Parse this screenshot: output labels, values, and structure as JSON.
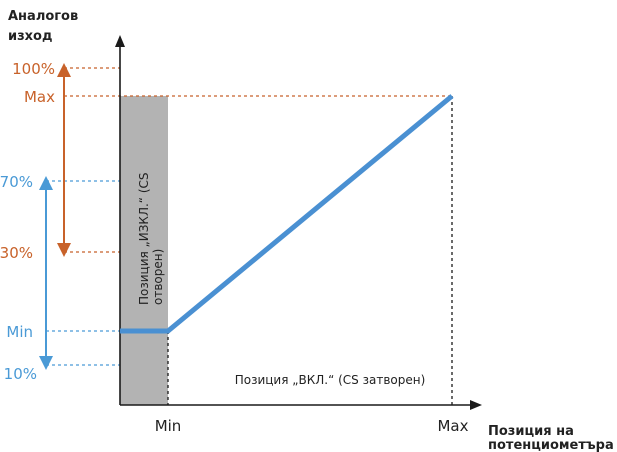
{
  "y_axis_title": [
    "Аналогов",
    "изход"
  ],
  "x_axis_title": [
    "Позиция на",
    "потенциометъра"
  ],
  "y_ticks": {
    "pct100": "100%",
    "max": "Max",
    "pct70": "70%",
    "pct30": "30%",
    "min": "Min",
    "pct10": "10%"
  },
  "x_ticks": {
    "min": "Min",
    "max": "Max"
  },
  "off_region_label": [
    "Позиция „ИЗКЛ.“ (CS",
    "отворен)"
  ],
  "on_region_label": "Позиция „ВКЛ.“ (CS затворен)",
  "colors": {
    "orange": "#c8622a",
    "blue": "#4a9ad6",
    "grey_region": "#b3b3b3",
    "axis": "#1a1a1a"
  }
}
